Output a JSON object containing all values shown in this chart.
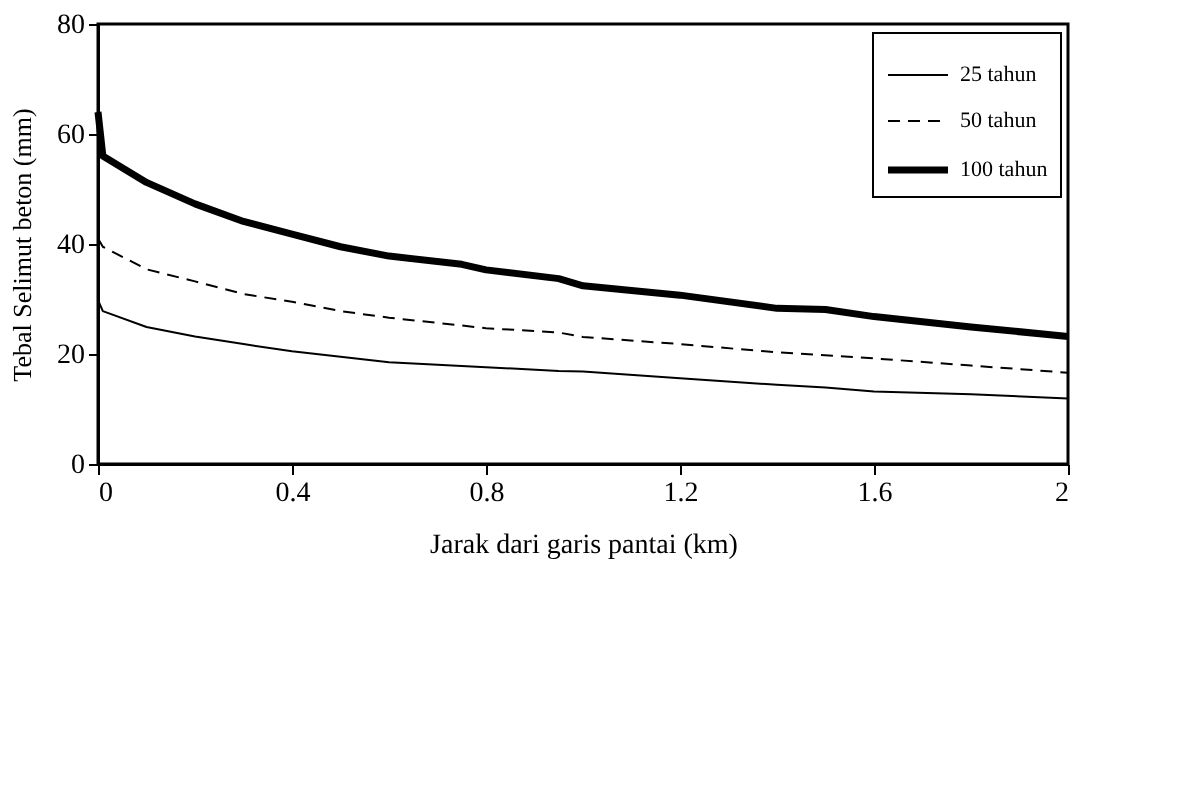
{
  "chart_data": {
    "type": "line",
    "xlabel": "Jarak dari garis pantai (km)",
    "ylabel": "Tebal Selimut beton (mm)",
    "xlim": [
      0,
      2
    ],
    "xticks": [
      0,
      0.4,
      0.8,
      1.2,
      1.6,
      2
    ],
    "ylim": [
      0,
      80
    ],
    "yticks": [
      0,
      20,
      40,
      60,
      80
    ],
    "grid": false,
    "legend": "top right",
    "marker": "none",
    "series": [
      {
        "name": "25 tahun",
        "color": "#000000",
        "line_style": "solid",
        "x": [
          0,
          0.01,
          0.1,
          0.2,
          0.3,
          0.4,
          0.5,
          0.6,
          0.8,
          0.95,
          1.0,
          1.2,
          1.4,
          1.5,
          1.6,
          1.8,
          2.0
        ],
        "values": [
          29.8,
          27.8,
          24.9,
          23.2,
          21.8,
          20.5,
          19.5,
          18.5,
          17.6,
          16.9,
          16.8,
          15.6,
          14.4,
          13.9,
          13.2,
          12.7,
          11.9
        ]
      },
      {
        "name": "50 tahun",
        "color": "#000000",
        "line_style": "dashed",
        "x": [
          0,
          0.01,
          0.1,
          0.2,
          0.3,
          0.4,
          0.5,
          0.6,
          0.8,
          0.95,
          1.0,
          1.2,
          1.4,
          1.6,
          1.8,
          2.0
        ],
        "values": [
          41,
          39.5,
          35.4,
          33.2,
          30.9,
          29.5,
          27.8,
          26.6,
          24.7,
          23.9,
          23.1,
          21.8,
          20.3,
          19.2,
          17.9,
          16.6
        ]
      },
      {
        "name": "100 tahun",
        "color": "#000000",
        "line_style": "solid",
        "x": [
          0,
          0.01,
          0.1,
          0.2,
          0.3,
          0.4,
          0.5,
          0.6,
          0.75,
          0.8,
          0.95,
          1.0,
          1.2,
          1.4,
          1.5,
          1.6,
          1.8,
          2.0
        ],
        "values": [
          64,
          56,
          51.2,
          47.3,
          44.1,
          41.8,
          39.5,
          37.8,
          36.3,
          35.3,
          33.7,
          32.4,
          30.7,
          28.3,
          28.1,
          26.8,
          24.9,
          23.2
        ]
      }
    ]
  }
}
